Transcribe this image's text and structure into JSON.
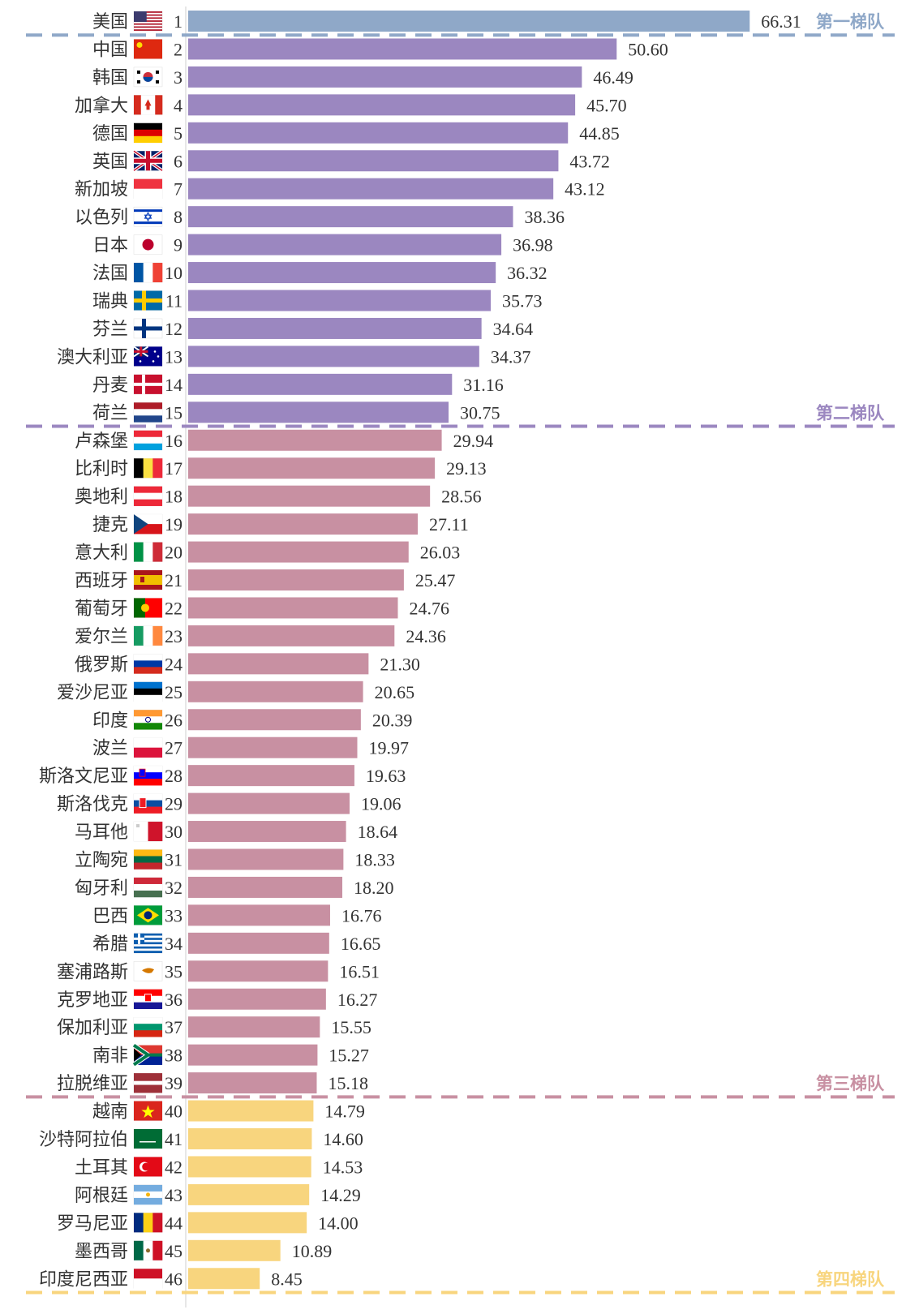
{
  "chart_data": {
    "type": "bar",
    "orientation": "horizontal",
    "title": "",
    "xlabel": "",
    "ylabel": "",
    "xlim": [
      0,
      70
    ],
    "grid": false,
    "categories": [
      "美国",
      "中国",
      "韩国",
      "加拿大",
      "德国",
      "英国",
      "新加坡",
      "以色列",
      "日本",
      "法国",
      "瑞典",
      "芬兰",
      "澳大利亚",
      "丹麦",
      "荷兰",
      "卢森堡",
      "比利时",
      "奥地利",
      "捷克",
      "意大利",
      "西班牙",
      "葡萄牙",
      "爱尔兰",
      "俄罗斯",
      "爱沙尼亚",
      "印度",
      "波兰",
      "斯洛文尼亚",
      "斯洛伐克",
      "马耳他",
      "立陶宛",
      "匈牙利",
      "巴西",
      "希腊",
      "塞浦路斯",
      "克罗地亚",
      "保加利亚",
      "南非",
      "拉脱维亚",
      "越南",
      "沙特阿拉伯",
      "土耳其",
      "阿根廷",
      "罗马尼亚",
      "墨西哥",
      "印度尼西亚"
    ],
    "ranks": [
      "1",
      "2",
      "3",
      "4",
      "5",
      "6",
      "7",
      "8",
      "9",
      "10",
      "11",
      "12",
      "13",
      "14",
      "15",
      "16",
      "17",
      "18",
      "19",
      "20",
      "21",
      "22",
      "23",
      "24",
      "25",
      "26",
      "27",
      "28",
      "29",
      "30",
      "31",
      "32",
      "33",
      "34",
      "35",
      "36",
      "37",
      "38",
      "39",
      "40",
      "41",
      "42",
      "43",
      "44",
      "45",
      "46"
    ],
    "values": [
      66.31,
      50.6,
      46.49,
      45.7,
      44.85,
      43.72,
      43.12,
      38.36,
      36.98,
      36.32,
      35.73,
      34.64,
      34.37,
      31.16,
      30.75,
      29.94,
      29.13,
      28.56,
      27.11,
      26.03,
      25.47,
      24.76,
      24.36,
      21.3,
      20.65,
      20.39,
      19.97,
      19.63,
      19.06,
      18.64,
      18.33,
      18.2,
      16.76,
      16.65,
      16.51,
      16.27,
      15.55,
      15.27,
      15.18,
      14.79,
      14.6,
      14.53,
      14.29,
      14.0,
      10.89,
      8.45
    ],
    "value_labels": [
      "66.31",
      "50.60",
      "46.49",
      "45.70",
      "44.85",
      "43.72",
      "43.12",
      "38.36",
      "36.98",
      "36.32",
      "35.73",
      "34.64",
      "34.37",
      "31.16",
      "30.75",
      "29.94",
      "29.13",
      "28.56",
      "27.11",
      "26.03",
      "25.47",
      "24.76",
      "24.36",
      "21.30",
      "20.65",
      "20.39",
      "19.97",
      "19.63",
      "19.06",
      "18.64",
      "18.33",
      "18.20",
      "16.76",
      "16.65",
      "16.51",
      "16.27",
      "15.55",
      "15.27",
      "15.18",
      "14.79",
      "14.60",
      "14.53",
      "14.29",
      "14.00",
      "10.89",
      "8.45"
    ],
    "flags": [
      "us",
      "cn",
      "kr",
      "ca",
      "de",
      "gb",
      "sg",
      "il",
      "jp",
      "fr",
      "se",
      "fi",
      "au",
      "dk",
      "nl",
      "lu",
      "be",
      "at",
      "cz",
      "it",
      "es",
      "pt",
      "ie",
      "ru",
      "ee",
      "in",
      "pl",
      "si",
      "sk",
      "mt",
      "lt",
      "hu",
      "br",
      "gr",
      "cy",
      "hr",
      "bg",
      "za",
      "lv",
      "vn",
      "sa",
      "tr",
      "ar",
      "ro",
      "mx",
      "id"
    ],
    "tiers": [
      {
        "label": "第一梯队",
        "color": "#8fa8c8",
        "end_rank": 1
      },
      {
        "label": "第二梯队",
        "color": "#9b87c0",
        "end_rank": 15
      },
      {
        "label": "第三梯队",
        "color": "#c890a2",
        "end_rank": 39
      },
      {
        "label": "第四梯队",
        "color": "#f8d57e",
        "end_rank": 46
      }
    ]
  }
}
